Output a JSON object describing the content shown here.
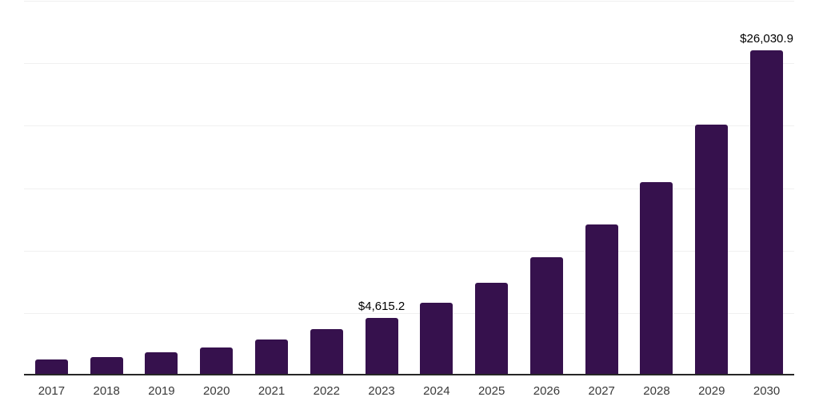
{
  "chart_data": {
    "type": "bar",
    "categories": [
      "2017",
      "2018",
      "2019",
      "2020",
      "2021",
      "2022",
      "2023",
      "2024",
      "2025",
      "2026",
      "2027",
      "2028",
      "2029",
      "2030"
    ],
    "values": [
      1280,
      1500,
      1880,
      2250,
      2850,
      3700,
      4615.2,
      5800,
      7450,
      9450,
      12100,
      15500,
      20100,
      26030.9
    ],
    "annotations": [
      {
        "category": "2023",
        "text": "$4,615.2"
      },
      {
        "category": "2030",
        "text": "$26,030.9"
      }
    ],
    "ylim": [
      0,
      30000
    ],
    "gridline_interval": 5000,
    "grid": "horizontal-only",
    "y_tick_labels_visible": false,
    "legend": "none",
    "colors": {
      "bar": "#36114d",
      "axis": "#262626",
      "gridline": "#f0f0f0",
      "tick_label": "#3a3a3a",
      "value_label": "#000000",
      "background": "#ffffff"
    }
  }
}
